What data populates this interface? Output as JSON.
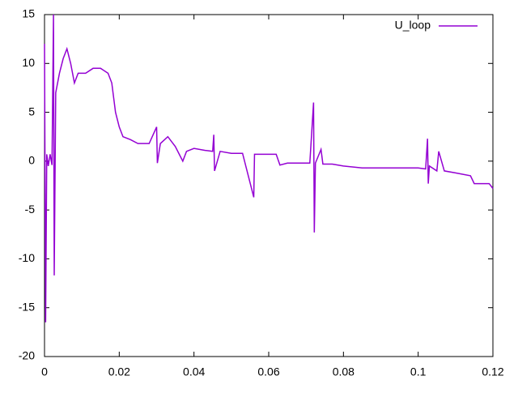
{
  "chart_data": {
    "type": "line",
    "x": [
      0,
      0.0003,
      0.0006,
      0.001,
      0.0015,
      0.002,
      0.0024,
      0.0026,
      0.003,
      0.004,
      0.005,
      0.006,
      0.007,
      0.008,
      0.009,
      0.011,
      0.013,
      0.015,
      0.017,
      0.018,
      0.019,
      0.02,
      0.021,
      0.023,
      0.025,
      0.028,
      0.03,
      0.0302,
      0.031,
      0.033,
      0.035,
      0.037,
      0.038,
      0.04,
      0.043,
      0.045,
      0.0453,
      0.0455,
      0.047,
      0.05,
      0.053,
      0.056,
      0.0562,
      0.059,
      0.062,
      0.063,
      0.065,
      0.068,
      0.071,
      0.072,
      0.0722,
      0.0725,
      0.074,
      0.0745,
      0.077,
      0.08,
      0.085,
      0.09,
      0.095,
      0.1,
      0.102,
      0.1025,
      0.1027,
      0.103,
      0.105,
      0.1055,
      0.107,
      0.11,
      0.114,
      0.115,
      0.119,
      0.12
    ],
    "series": [
      {
        "name": "U_loop",
        "color": "#9400d3",
        "values": [
          12,
          -16.5,
          0.7,
          -0.5,
          0.7,
          -0.4,
          15,
          -11.7,
          7,
          9,
          10.5,
          11.5,
          10,
          8,
          9,
          9,
          9.5,
          9.5,
          9,
          8,
          5,
          3.5,
          2.5,
          2.2,
          1.8,
          1.8,
          3.5,
          -0.2,
          1.8,
          2.5,
          1.5,
          0,
          1,
          1.3,
          1.1,
          1.0,
          2.7,
          -1,
          1,
          0.8,
          0.8,
          -3.7,
          0.7,
          0.7,
          0.7,
          -0.4,
          -0.2,
          -0.2,
          -0.2,
          6,
          -7.3,
          -0.2,
          1.2,
          -0.3,
          -0.3,
          -0.5,
          -0.7,
          -0.7,
          -0.7,
          -0.7,
          -0.8,
          2.3,
          -2.3,
          -0.5,
          -1,
          1,
          -1,
          -1.2,
          -1.5,
          -2.3,
          -2.3,
          -2.8
        ]
      }
    ],
    "xlim": [
      0,
      0.12
    ],
    "xticks": [
      0,
      0.02,
      0.04,
      0.06,
      0.08,
      0.1,
      0.12
    ],
    "ylim": [
      -20,
      15
    ],
    "yticks": [
      -20,
      -15,
      -10,
      -5,
      0,
      5,
      10,
      15
    ],
    "grid": false,
    "legend": "top-right"
  }
}
